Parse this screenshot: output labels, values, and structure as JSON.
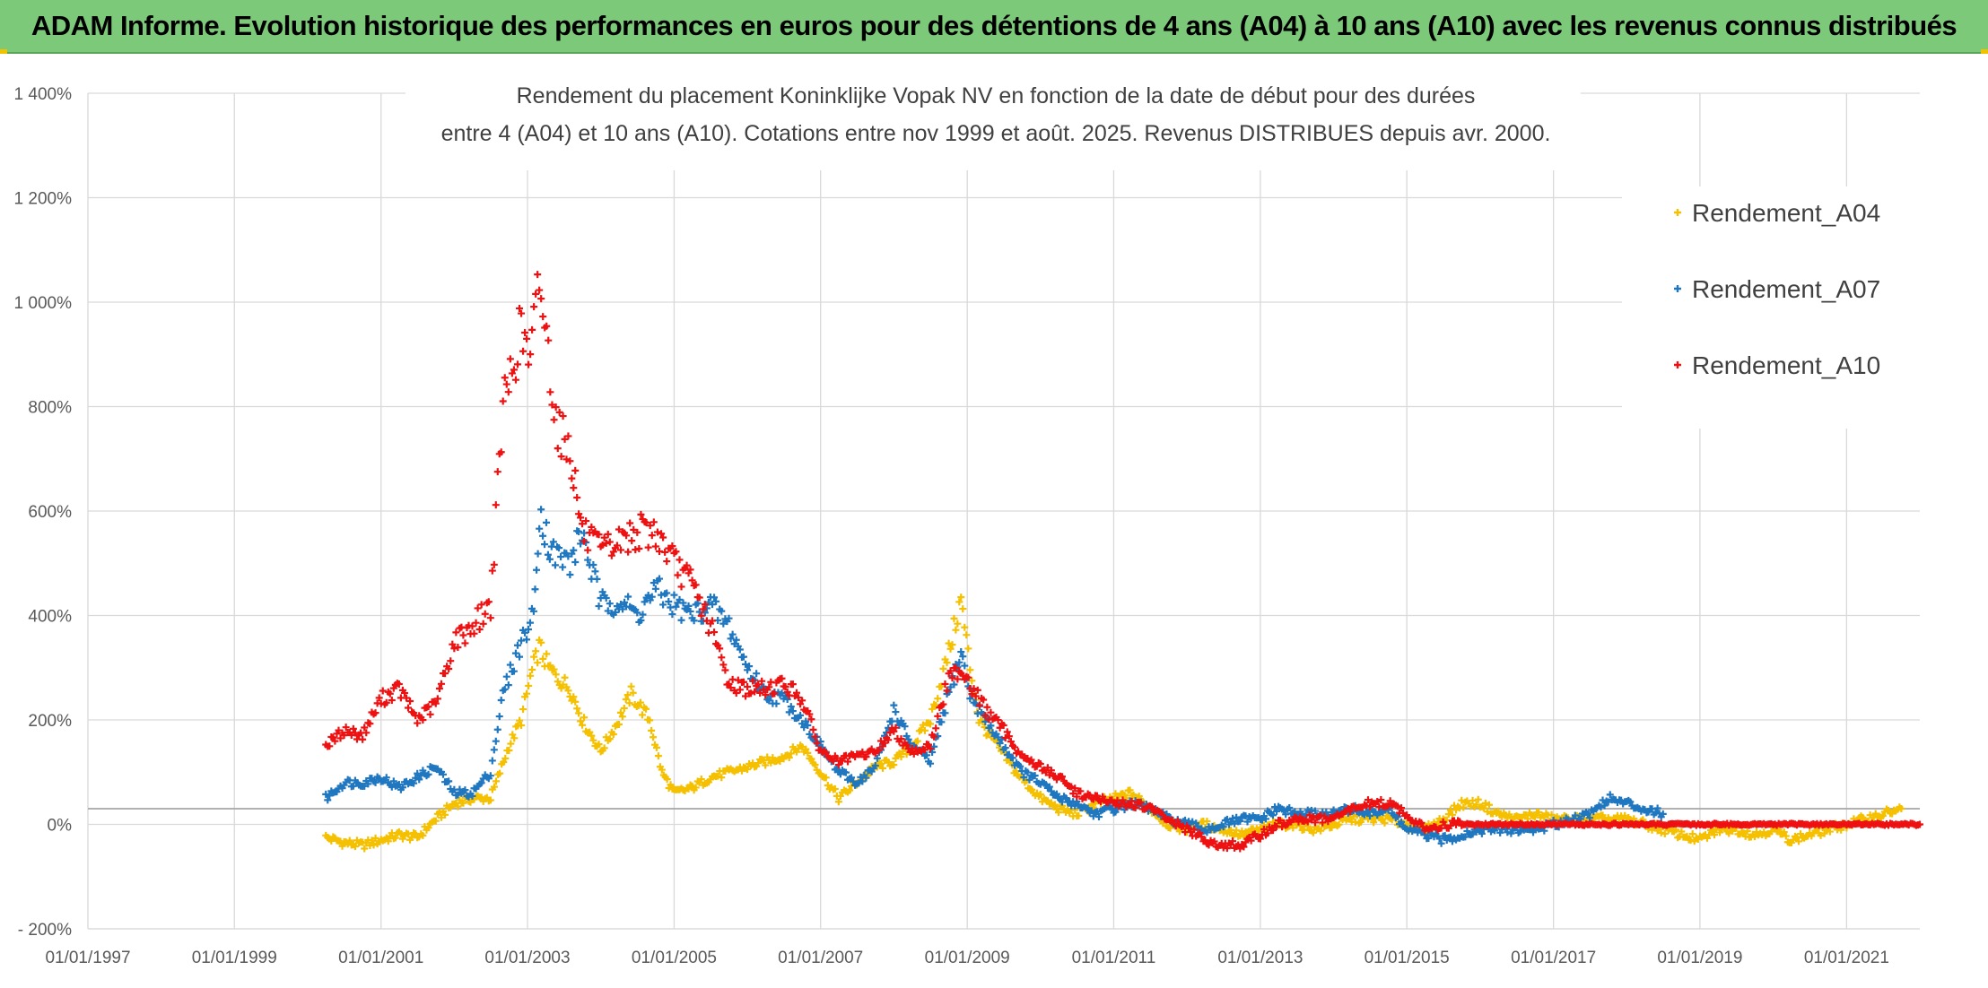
{
  "header": {
    "banner_title": "ADAM Informe. Evolution historique des performances en euros pour des détentions de 4 ans (A04) à 10 ans (A10) avec les revenus connus distribués"
  },
  "colors": {
    "banner": "#7dc97a",
    "A04": "#f5c000",
    "A07": "#1f77c0",
    "A10": "#ee1111"
  },
  "chart_data": {
    "type": "scatter",
    "title_lines": [
      "Rendement du placement Koninklijke Vopak NV en fonction de la date de début pour des durées",
      "entre 4 (A04) et 10 ans (A10). Cotations entre nov 1999 et août. 2025. Revenus DISTRIBUES depuis avr. 2000."
    ],
    "marker": "+",
    "legend_position": "top-right",
    "grid": true,
    "xlim": [
      "1997-01-01",
      "2022-01-01"
    ],
    "ylim": [
      -200,
      1400
    ],
    "y_ticks": [
      -200,
      0,
      200,
      400,
      600,
      800,
      1000,
      1200,
      1400
    ],
    "y_tick_labels": [
      "- 200%",
      "0%",
      "200%",
      "400%",
      "600%",
      "800%",
      "1 000%",
      "1 200%",
      "1 400%"
    ],
    "x_ticks": [
      "1997-01-01",
      "1999-01-01",
      "2001-01-01",
      "2003-01-01",
      "2005-01-01",
      "2007-01-01",
      "2009-01-01",
      "2011-01-01",
      "2013-01-01",
      "2015-01-01",
      "2017-01-01",
      "2019-01-01",
      "2021-01-01"
    ],
    "x_tick_labels": [
      "01/01/1997",
      "01/01/1999",
      "01/01/2001",
      "01/01/2003",
      "01/01/2005",
      "01/01/2007",
      "01/01/2009",
      "01/01/2011",
      "01/01/2013",
      "01/01/2015",
      "01/01/2017",
      "01/01/2019",
      "01/01/2021"
    ],
    "series": [
      {
        "name": "Rendement_A04",
        "color": "#f5c000",
        "points": [
          [
            "2000-04-01",
            -25
          ],
          [
            "2000-07-01",
            -35
          ],
          [
            "2000-10-01",
            -40
          ],
          [
            "2001-01-01",
            -30
          ],
          [
            "2001-04-01",
            -20
          ],
          [
            "2001-07-01",
            -25
          ],
          [
            "2001-10-01",
            10
          ],
          [
            "2002-01-01",
            40
          ],
          [
            "2002-04-01",
            50
          ],
          [
            "2002-07-01",
            50
          ],
          [
            "2002-10-01",
            150
          ],
          [
            "2002-12-01",
            200
          ],
          [
            "2003-01-15",
            280
          ],
          [
            "2003-03-01",
            340
          ],
          [
            "2003-04-15",
            300
          ],
          [
            "2003-06-01",
            280
          ],
          [
            "2003-08-01",
            260
          ],
          [
            "2003-10-01",
            200
          ],
          [
            "2004-01-01",
            140
          ],
          [
            "2004-04-01",
            200
          ],
          [
            "2004-06-01",
            250
          ],
          [
            "2004-09-01",
            200
          ],
          [
            "2004-11-01",
            100
          ],
          [
            "2005-01-01",
            60
          ],
          [
            "2005-04-01",
            70
          ],
          [
            "2005-07-01",
            90
          ],
          [
            "2005-10-01",
            100
          ],
          [
            "2006-01-01",
            110
          ],
          [
            "2006-04-01",
            120
          ],
          [
            "2006-07-01",
            130
          ],
          [
            "2006-10-01",
            150
          ],
          [
            "2007-01-01",
            100
          ],
          [
            "2007-04-01",
            50
          ],
          [
            "2007-07-01",
            80
          ],
          [
            "2007-10-01",
            110
          ],
          [
            "2008-01-01",
            120
          ],
          [
            "2008-04-01",
            150
          ],
          [
            "2008-07-01",
            200
          ],
          [
            "2008-10-01",
            330
          ],
          [
            "2008-12-01",
            430
          ],
          [
            "2009-01-15",
            300
          ],
          [
            "2009-03-01",
            200
          ],
          [
            "2009-06-01",
            150
          ],
          [
            "2009-09-01",
            100
          ],
          [
            "2010-01-01",
            50
          ],
          [
            "2010-04-01",
            30
          ],
          [
            "2010-07-01",
            20
          ],
          [
            "2010-10-01",
            40
          ],
          [
            "2011-01-01",
            50
          ],
          [
            "2011-04-01",
            60
          ],
          [
            "2011-07-01",
            30
          ],
          [
            "2011-10-01",
            0
          ],
          [
            "2012-01-01",
            -10
          ],
          [
            "2012-04-01",
            0
          ],
          [
            "2012-07-01",
            -10
          ],
          [
            "2012-10-01",
            -20
          ],
          [
            "2013-01-01",
            -10
          ],
          [
            "2013-04-01",
            0
          ],
          [
            "2013-07-01",
            0
          ],
          [
            "2013-10-01",
            -10
          ],
          [
            "2014-01-01",
            0
          ],
          [
            "2014-04-01",
            10
          ],
          [
            "2014-07-01",
            10
          ],
          [
            "2014-10-01",
            10
          ],
          [
            "2015-01-01",
            0
          ],
          [
            "2015-04-01",
            -10
          ],
          [
            "2015-07-01",
            10
          ],
          [
            "2015-10-01",
            40
          ],
          [
            "2016-01-01",
            40
          ],
          [
            "2016-04-01",
            20
          ],
          [
            "2016-07-01",
            10
          ],
          [
            "2016-10-01",
            20
          ],
          [
            "2017-01-01",
            10
          ],
          [
            "2017-04-01",
            10
          ],
          [
            "2017-07-01",
            10
          ],
          [
            "2017-10-01",
            10
          ],
          [
            "2018-01-01",
            10
          ],
          [
            "2018-04-01",
            0
          ],
          [
            "2018-07-01",
            -10
          ],
          [
            "2018-10-01",
            -20
          ],
          [
            "2019-01-01",
            -30
          ],
          [
            "2019-04-01",
            -10
          ],
          [
            "2019-07-01",
            -10
          ],
          [
            "2019-10-01",
            -20
          ],
          [
            "2020-01-01",
            -10
          ],
          [
            "2020-04-01",
            -30
          ],
          [
            "2020-07-01",
            -20
          ],
          [
            "2020-10-01",
            -10
          ],
          [
            "2021-01-01",
            0
          ],
          [
            "2021-04-01",
            10
          ],
          [
            "2021-07-01",
            20
          ],
          [
            "2021-10-01",
            30
          ]
        ]
      },
      {
        "name": "Rendement_A07",
        "color": "#1f77c0",
        "points": [
          [
            "2000-04-01",
            50
          ],
          [
            "2000-07-01",
            80
          ],
          [
            "2000-10-01",
            80
          ],
          [
            "2001-01-01",
            90
          ],
          [
            "2001-04-01",
            70
          ],
          [
            "2001-07-01",
            90
          ],
          [
            "2001-10-01",
            110
          ],
          [
            "2002-01-01",
            60
          ],
          [
            "2002-04-01",
            60
          ],
          [
            "2002-07-01",
            100
          ],
          [
            "2002-09-01",
            250
          ],
          [
            "2002-12-01",
            350
          ],
          [
            "2003-02-01",
            400
          ],
          [
            "2003-03-01",
            600
          ],
          [
            "2003-05-01",
            520
          ],
          [
            "2003-08-01",
            500
          ],
          [
            "2003-10-01",
            560
          ],
          [
            "2004-01-01",
            420
          ],
          [
            "2004-04-01",
            430
          ],
          [
            "2004-07-01",
            400
          ],
          [
            "2004-10-01",
            450
          ],
          [
            "2005-01-01",
            420
          ],
          [
            "2005-04-01",
            400
          ],
          [
            "2005-07-01",
            420
          ],
          [
            "2005-10-01",
            380
          ],
          [
            "2006-01-01",
            300
          ],
          [
            "2006-04-01",
            250
          ],
          [
            "2006-07-01",
            240
          ],
          [
            "2006-10-01",
            200
          ],
          [
            "2007-01-01",
            150
          ],
          [
            "2007-04-01",
            100
          ],
          [
            "2007-07-01",
            80
          ],
          [
            "2007-10-01",
            110
          ],
          [
            "2008-01-01",
            220
          ],
          [
            "2008-04-01",
            150
          ],
          [
            "2008-07-01",
            120
          ],
          [
            "2008-10-01",
            250
          ],
          [
            "2008-12-01",
            330
          ],
          [
            "2009-01-15",
            250
          ],
          [
            "2009-04-01",
            200
          ],
          [
            "2009-07-01",
            150
          ],
          [
            "2009-10-01",
            100
          ],
          [
            "2010-01-01",
            80
          ],
          [
            "2010-04-01",
            50
          ],
          [
            "2010-07-01",
            40
          ],
          [
            "2010-10-01",
            20
          ],
          [
            "2011-01-01",
            30
          ],
          [
            "2011-04-01",
            40
          ],
          [
            "2011-07-01",
            30
          ],
          [
            "2011-10-01",
            10
          ],
          [
            "2012-01-01",
            0
          ],
          [
            "2012-04-01",
            -10
          ],
          [
            "2012-07-01",
            0
          ],
          [
            "2012-10-01",
            10
          ],
          [
            "2013-01-01",
            10
          ],
          [
            "2013-04-01",
            30
          ],
          [
            "2013-07-01",
            20
          ],
          [
            "2013-10-01",
            20
          ],
          [
            "2014-01-01",
            20
          ],
          [
            "2014-04-01",
            30
          ],
          [
            "2014-07-01",
            20
          ],
          [
            "2014-10-01",
            30
          ],
          [
            "2015-01-01",
            -10
          ],
          [
            "2015-04-01",
            -20
          ],
          [
            "2015-07-01",
            -30
          ],
          [
            "2015-10-01",
            -20
          ],
          [
            "2016-01-01",
            -10
          ],
          [
            "2016-04-01",
            -10
          ],
          [
            "2016-07-01",
            -10
          ],
          [
            "2016-10-01",
            -10
          ],
          [
            "2017-01-01",
            0
          ],
          [
            "2017-04-01",
            10
          ],
          [
            "2017-07-01",
            20
          ],
          [
            "2017-10-01",
            50
          ],
          [
            "2018-01-01",
            40
          ],
          [
            "2018-04-01",
            30
          ],
          [
            "2018-07-01",
            20
          ]
        ]
      },
      {
        "name": "Rendement_A10",
        "color": "#ee1111",
        "points": [
          [
            "2000-04-01",
            150
          ],
          [
            "2000-07-01",
            180
          ],
          [
            "2000-10-01",
            170
          ],
          [
            "2001-01-01",
            240
          ],
          [
            "2001-04-01",
            260
          ],
          [
            "2001-07-01",
            200
          ],
          [
            "2001-10-01",
            230
          ],
          [
            "2002-01-01",
            350
          ],
          [
            "2002-04-01",
            380
          ],
          [
            "2002-07-01",
            420
          ],
          [
            "2002-09-01",
            800
          ],
          [
            "2002-12-01",
            950
          ],
          [
            "2003-01-15",
            880
          ],
          [
            "2003-03-01",
            1050
          ],
          [
            "2003-04-15",
            900
          ],
          [
            "2003-06-01",
            760
          ],
          [
            "2003-08-01",
            720
          ],
          [
            "2003-10-01",
            560
          ],
          [
            "2004-01-01",
            520
          ],
          [
            "2004-04-01",
            540
          ],
          [
            "2004-07-01",
            560
          ],
          [
            "2004-10-01",
            560
          ],
          [
            "2005-01-01",
            500
          ],
          [
            "2005-04-01",
            460
          ],
          [
            "2005-07-01",
            380
          ],
          [
            "2005-10-01",
            270
          ],
          [
            "2006-01-01",
            260
          ],
          [
            "2006-04-01",
            260
          ],
          [
            "2006-07-01",
            270
          ],
          [
            "2006-10-01",
            240
          ],
          [
            "2007-01-01",
            140
          ],
          [
            "2007-04-01",
            120
          ],
          [
            "2007-07-01",
            130
          ],
          [
            "2007-10-01",
            140
          ],
          [
            "2008-01-01",
            180
          ],
          [
            "2008-04-01",
            140
          ],
          [
            "2008-07-01",
            150
          ],
          [
            "2008-10-01",
            280
          ],
          [
            "2008-12-01",
            300
          ],
          [
            "2009-01-15",
            270
          ],
          [
            "2009-04-01",
            220
          ],
          [
            "2009-07-01",
            180
          ],
          [
            "2009-10-01",
            130
          ],
          [
            "2010-01-01",
            110
          ],
          [
            "2010-04-01",
            90
          ],
          [
            "2010-07-01",
            60
          ],
          [
            "2010-10-01",
            50
          ],
          [
            "2011-01-01",
            40
          ],
          [
            "2011-04-01",
            40
          ],
          [
            "2011-07-01",
            30
          ],
          [
            "2011-10-01",
            10
          ],
          [
            "2012-01-01",
            -10
          ],
          [
            "2012-04-01",
            -30
          ],
          [
            "2012-07-01",
            -40
          ],
          [
            "2012-10-01",
            -40
          ],
          [
            "2013-01-01",
            -20
          ],
          [
            "2013-04-01",
            0
          ],
          [
            "2013-07-01",
            10
          ],
          [
            "2013-10-01",
            10
          ],
          [
            "2014-01-01",
            10
          ],
          [
            "2014-04-01",
            30
          ],
          [
            "2014-07-01",
            40
          ],
          [
            "2014-10-01",
            40
          ],
          [
            "2015-01-01",
            20
          ],
          [
            "2015-04-01",
            -10
          ],
          [
            "2015-07-01",
            0
          ],
          [
            "2015-10-01",
            0
          ],
          [
            "2016-01-01",
            0
          ],
          [
            "2016-07-01",
            0
          ],
          [
            "2017-01-01",
            0
          ],
          [
            "2017-07-01",
            0
          ],
          [
            "2018-01-01",
            0
          ],
          [
            "2018-07-01",
            0
          ],
          [
            "2019-01-01",
            0
          ],
          [
            "2019-07-01",
            0
          ],
          [
            "2020-01-01",
            0
          ],
          [
            "2020-07-01",
            0
          ],
          [
            "2021-01-01",
            0
          ],
          [
            "2021-07-01",
            0
          ],
          [
            "2022-01-01",
            0
          ]
        ]
      }
    ]
  }
}
